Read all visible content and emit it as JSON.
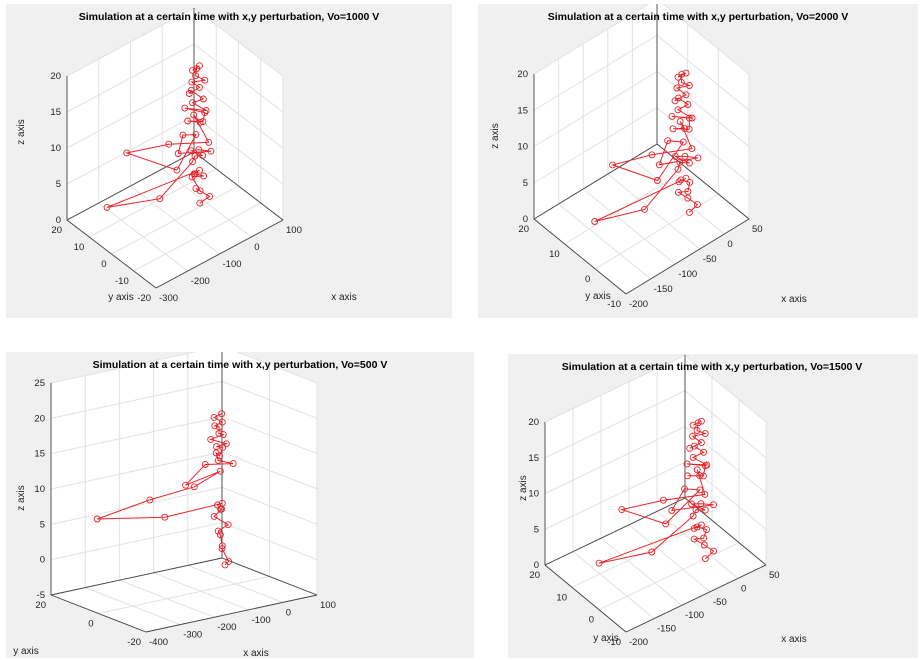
{
  "colors": {
    "series": "#e8242a",
    "figure_bg": "#f0f0f0",
    "axes_bg": "#ffffff",
    "grid": "#e2e2e2"
  },
  "chart_data": [
    {
      "type": "scatter",
      "subtype": "3d-line-with-circle-markers",
      "title": "Simulation at a certain time with x,y perturbation, Vo=1000 V",
      "xlabel": "x axis",
      "ylabel": "y axis",
      "zlabel": "z axis",
      "xlim": [
        -300,
        100
      ],
      "ylim": [
        -20,
        20
      ],
      "zlim": [
        0,
        20
      ],
      "xticks": [
        "-300",
        "-200",
        "-100",
        "0",
        "100"
      ],
      "yticks": [
        "-20",
        "-10",
        "0",
        "10",
        "20"
      ],
      "zticks": [
        "0",
        "5",
        "10",
        "15",
        "20"
      ],
      "grid": true,
      "points": [
        [
          -22,
          0,
          0.5
        ],
        [
          -5,
          -2,
          1.5
        ],
        [
          -20,
          2,
          2
        ],
        [
          -35,
          -2,
          3
        ],
        [
          -25,
          3,
          3.5
        ],
        [
          -10,
          0,
          4
        ],
        [
          -30,
          1,
          4.5
        ],
        [
          -40,
          0,
          5
        ],
        [
          -30,
          -1,
          5.5
        ],
        [
          -300,
          2,
          6
        ],
        [
          -190,
          -6,
          6.5
        ],
        [
          -45,
          0,
          6.8
        ],
        [
          -30,
          1,
          7
        ],
        [
          -20,
          -1,
          7.3
        ],
        [
          -35,
          2,
          7.6
        ],
        [
          -25,
          0,
          8
        ],
        [
          -15,
          -4,
          8.5
        ],
        [
          -90,
          0,
          9
        ],
        [
          -40,
          5,
          9.2
        ],
        [
          -20,
          2,
          9.5
        ],
        [
          -150,
          -8,
          10
        ],
        [
          -210,
          6,
          10.5
        ],
        [
          -120,
          0,
          11
        ],
        [
          -50,
          -8,
          11.5
        ],
        [
          -20,
          3,
          12
        ],
        [
          -35,
          -2,
          12.5
        ],
        [
          -60,
          0,
          12.8
        ],
        [
          -40,
          -4,
          13.2
        ],
        [
          -20,
          -2,
          13.5
        ],
        [
          -55,
          2,
          14
        ],
        [
          -30,
          -4,
          14.5
        ],
        [
          -45,
          0,
          15
        ],
        [
          -25,
          -2,
          15.5
        ],
        [
          -35,
          2,
          16
        ],
        [
          -55,
          0,
          16.5
        ],
        [
          -30,
          -1,
          17
        ],
        [
          -40,
          1,
          17.5
        ],
        [
          -20,
          -2,
          18
        ],
        [
          -35,
          0,
          18.5
        ],
        [
          -25,
          1,
          19
        ],
        [
          -45,
          0,
          19.5
        ],
        [
          -30,
          -1,
          20
        ]
      ]
    },
    {
      "type": "scatter",
      "subtype": "3d-line-with-circle-markers",
      "title": "Simulation at a certain time with x,y perturbation, Vo=2000 V",
      "xlabel": "x axis",
      "ylabel": "y axis",
      "zlabel": "z axis",
      "xlim": [
        -200,
        50
      ],
      "ylim": [
        -10,
        20
      ],
      "zlim": [
        0,
        20
      ],
      "xticks": [
        "-200",
        "-150",
        "-100",
        "-50",
        "0",
        "50"
      ],
      "yticks": [
        "-10",
        "0",
        "10",
        "20"
      ],
      "zticks": [
        "0",
        "5",
        "10",
        "15",
        "20"
      ],
      "grid": true,
      "points": [
        [
          -15,
          -1,
          0.5
        ],
        [
          -5,
          -2,
          1.5
        ],
        [
          -12,
          0,
          2
        ],
        [
          -25,
          1,
          3
        ],
        [
          -18,
          -1,
          3.5
        ],
        [
          -8,
          0,
          4
        ],
        [
          -20,
          1,
          4.5
        ],
        [
          -30,
          0,
          5
        ],
        [
          -22,
          -1,
          5.5
        ],
        [
          -195,
          1,
          6
        ],
        [
          -125,
          -4,
          6.5
        ],
        [
          -32,
          0,
          6.8
        ],
        [
          -22,
          1,
          7
        ],
        [
          -15,
          -1,
          7.3
        ],
        [
          -25,
          2,
          7.6
        ],
        [
          -18,
          0,
          8
        ],
        [
          -10,
          -3,
          8.5
        ],
        [
          -70,
          0,
          9
        ],
        [
          -28,
          4,
          9.2
        ],
        [
          -15,
          1,
          9.5
        ],
        [
          -105,
          -5,
          10
        ],
        [
          -140,
          4,
          10.5
        ],
        [
          -85,
          0,
          11
        ],
        [
          -35,
          -5,
          11.5
        ],
        [
          -15,
          2,
          12
        ],
        [
          -25,
          -1,
          12.5
        ],
        [
          -42,
          0,
          12.8
        ],
        [
          -28,
          -3,
          13.2
        ],
        [
          -15,
          -1,
          13.5
        ],
        [
          -38,
          1,
          14
        ],
        [
          -22,
          -3,
          14.5
        ],
        [
          -32,
          0,
          15
        ],
        [
          -18,
          -1,
          15.5
        ],
        [
          -25,
          1,
          16
        ],
        [
          -38,
          0,
          16.5
        ],
        [
          -22,
          -1,
          17
        ],
        [
          -28,
          1,
          17.5
        ],
        [
          -15,
          -1,
          18
        ],
        [
          -25,
          0,
          18.5
        ],
        [
          -18,
          1,
          19
        ],
        [
          -32,
          0,
          19.5
        ],
        [
          -22,
          -1,
          20
        ]
      ]
    },
    {
      "type": "scatter",
      "subtype": "3d-line-with-circle-markers",
      "title": "Simulation at a certain time with x,y perturbation, Vo=500 V",
      "xlabel": "x axis",
      "ylabel": "y axis",
      "zlabel": "z axis",
      "xlim": [
        -400,
        100
      ],
      "ylim": [
        -20,
        20
      ],
      "zlim": [
        -5,
        25
      ],
      "xticks": [
        "-400",
        "-300",
        "-200",
        "-100",
        "0",
        "100"
      ],
      "yticks": [
        "-20",
        "0",
        "20"
      ],
      "zticks": [
        "-5",
        "0",
        "5",
        "10",
        "15",
        "20",
        "25"
      ],
      "grid": true,
      "points": [
        [
          -30,
          0,
          -2
        ],
        [
          -40,
          -3,
          -1
        ],
        [
          -25,
          2,
          0
        ],
        [
          -45,
          -1,
          1
        ],
        [
          -30,
          2,
          2
        ],
        [
          -50,
          0,
          3
        ],
        [
          -35,
          -2,
          4
        ],
        [
          -55,
          1,
          5
        ],
        [
          -40,
          0,
          6
        ],
        [
          -50,
          -1,
          6.2
        ],
        [
          -45,
          1,
          6.5
        ],
        [
          -38,
          0,
          6.8
        ],
        [
          -220,
          -2,
          7
        ],
        [
          -390,
          2,
          8
        ],
        [
          -250,
          0,
          9.5
        ],
        [
          -120,
          0,
          10
        ],
        [
          -30,
          2,
          11
        ],
        [
          -180,
          -5,
          11.5
        ],
        [
          -60,
          4,
          12
        ],
        [
          -20,
          -2,
          12.5
        ],
        [
          -50,
          0,
          13
        ],
        [
          -35,
          3,
          13.5
        ],
        [
          -60,
          -2,
          14
        ],
        [
          -30,
          1,
          14.5
        ],
        [
          -55,
          0,
          15
        ],
        [
          -40,
          -2,
          15.5
        ],
        [
          -65,
          1,
          16
        ],
        [
          -35,
          0,
          16.5
        ],
        [
          -55,
          -1,
          17
        ],
        [
          -40,
          1,
          17.5
        ],
        [
          -60,
          0,
          18
        ],
        [
          -45,
          -1,
          18.5
        ],
        [
          -55,
          1,
          19
        ],
        [
          -40,
          0,
          19.5
        ]
      ]
    },
    {
      "type": "scatter",
      "subtype": "3d-line-with-circle-markers",
      "title": "Simulation at a certain time with x,y perturbation, Vo=1500 V",
      "xlabel": "x axis",
      "ylabel": "y axis",
      "zlabel": "z axis",
      "xlim": [
        -200,
        50
      ],
      "ylim": [
        -10,
        20
      ],
      "zlim": [
        0,
        20
      ],
      "xticks": [
        "-200",
        "-150",
        "-100",
        "-50",
        "0",
        "50"
      ],
      "yticks": [
        "-10",
        "0",
        "10",
        "20"
      ],
      "zticks": [
        "0",
        "5",
        "10",
        "15",
        "20"
      ],
      "grid": true,
      "points": [
        [
          -15,
          -1,
          0.5
        ],
        [
          -5,
          -2,
          1.5
        ],
        [
          -12,
          0,
          2
        ],
        [
          -25,
          1,
          3
        ],
        [
          -18,
          -1,
          3.5
        ],
        [
          -8,
          0,
          4
        ],
        [
          -20,
          1,
          4.5
        ],
        [
          -30,
          0,
          5
        ],
        [
          -22,
          -1,
          5.5
        ],
        [
          -195,
          1,
          6
        ],
        [
          -125,
          -4,
          6.5
        ],
        [
          -32,
          0,
          6.8
        ],
        [
          -22,
          1,
          7
        ],
        [
          -15,
          -1,
          7.3
        ],
        [
          -25,
          2,
          7.6
        ],
        [
          -18,
          0,
          8
        ],
        [
          -10,
          -3,
          8.5
        ],
        [
          -70,
          0,
          9
        ],
        [
          -28,
          4,
          9.2
        ],
        [
          -15,
          1,
          9.5
        ],
        [
          -105,
          -5,
          10
        ],
        [
          -140,
          4,
          10.5
        ],
        [
          -85,
          0,
          11
        ],
        [
          -35,
          -5,
          11.5
        ],
        [
          -15,
          2,
          12
        ],
        [
          -25,
          -1,
          12.5
        ],
        [
          -42,
          0,
          12.8
        ],
        [
          -28,
          -3,
          13.2
        ],
        [
          -15,
          -1,
          13.5
        ],
        [
          -38,
          1,
          14
        ],
        [
          -22,
          -3,
          14.5
        ],
        [
          -32,
          0,
          15
        ],
        [
          -18,
          -1,
          15.5
        ],
        [
          -25,
          1,
          16
        ],
        [
          -38,
          0,
          16.5
        ],
        [
          -22,
          -1,
          17
        ],
        [
          -28,
          1,
          17.5
        ],
        [
          -15,
          -1,
          18
        ],
        [
          -25,
          0,
          18.5
        ],
        [
          -18,
          1,
          19
        ],
        [
          -32,
          0,
          19.5
        ],
        [
          -22,
          -1,
          20
        ]
      ]
    }
  ]
}
